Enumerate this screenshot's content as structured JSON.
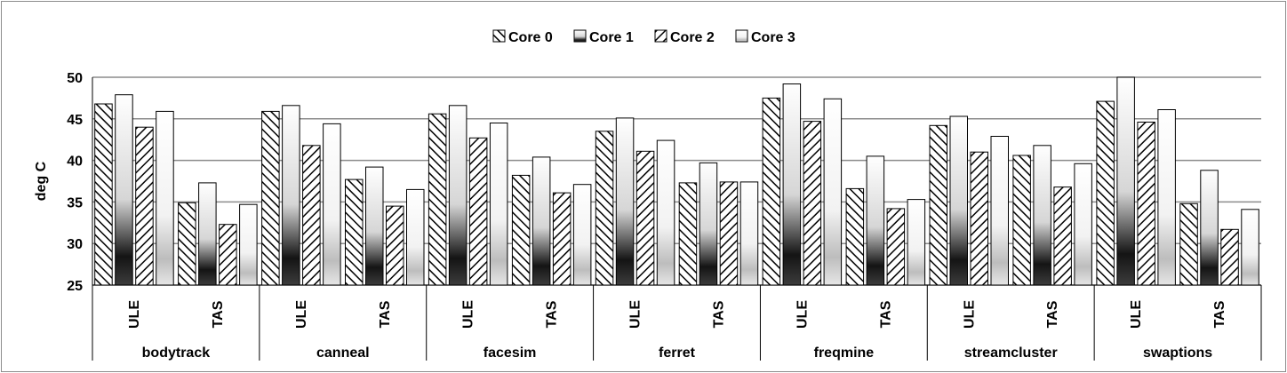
{
  "chart_data": {
    "type": "bar",
    "title": "",
    "ylabel": "deg C",
    "xlabel": "",
    "ylim": [
      25,
      50
    ],
    "yticks": [
      25,
      30,
      35,
      40,
      45,
      50
    ],
    "grid": true,
    "legend_position": "top-center",
    "groups": [
      "bodytrack",
      "canneal",
      "facesim",
      "ferret",
      "freqmine",
      "streamcluster",
      "swaptions"
    ],
    "subcategories": [
      "ULE",
      "TAS"
    ],
    "series": [
      {
        "name": "Core 0",
        "pattern": "backslash-hatch",
        "values": [
          [
            46.8,
            34.9
          ],
          [
            45.9,
            37.7
          ],
          [
            45.6,
            38.2
          ],
          [
            43.5,
            37.3
          ],
          [
            47.5,
            36.6
          ],
          [
            44.2,
            40.6
          ],
          [
            47.1,
            34.8
          ]
        ]
      },
      {
        "name": "Core 1",
        "pattern": "dark-gradient",
        "values": [
          [
            47.9,
            37.3
          ],
          [
            46.6,
            39.2
          ],
          [
            46.6,
            40.4
          ],
          [
            45.1,
            39.7
          ],
          [
            49.2,
            40.5
          ],
          [
            45.3,
            41.8
          ],
          [
            50.0,
            38.8
          ]
        ]
      },
      {
        "name": "Core 2",
        "pattern": "slash-hatch",
        "values": [
          [
            44.0,
            32.3
          ],
          [
            41.8,
            34.5
          ],
          [
            42.7,
            36.1
          ],
          [
            41.1,
            37.4
          ],
          [
            44.7,
            34.2
          ],
          [
            41.0,
            36.8
          ],
          [
            44.6,
            31.7
          ]
        ]
      },
      {
        "name": "Core 3",
        "pattern": "light-gradient",
        "values": [
          [
            45.9,
            34.7
          ],
          [
            44.4,
            36.5
          ],
          [
            44.5,
            37.1
          ],
          [
            42.4,
            37.4
          ],
          [
            47.4,
            35.3
          ],
          [
            42.9,
            39.6
          ],
          [
            46.1,
            34.1
          ]
        ]
      }
    ]
  },
  "colors": {
    "bar_outline": "#000000",
    "gridline": "#8c8c8c",
    "frame": "#8c8c8c"
  }
}
